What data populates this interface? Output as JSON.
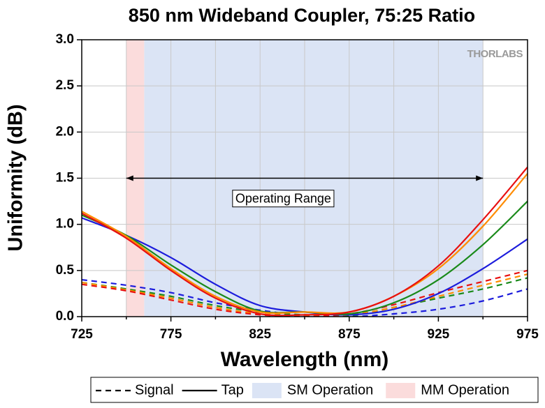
{
  "chart_data": {
    "type": "line",
    "title": "850 nm Wideband Coupler, 75:25 Ratio",
    "x_label": "Wavelength (nm)",
    "y_label": "Uniformity (dB)",
    "logo": "THORLABS",
    "x": [
      725,
      750,
      775,
      800,
      825,
      850,
      875,
      900,
      925,
      950,
      975
    ],
    "xlim": [
      725,
      975
    ],
    "xticks": [
      725,
      775,
      825,
      875,
      925,
      975
    ],
    "xminor_ticks": [
      750,
      800,
      850,
      900,
      950
    ],
    "ylim": [
      0,
      3
    ],
    "yticks": [
      {
        "value": 0,
        "label": "0.0"
      },
      0.5,
      {
        "value": 1,
        "label": "1.0"
      },
      1.5,
      {
        "value": 2,
        "label": "2.0"
      },
      2.5,
      {
        "value": 3,
        "label": "3.0"
      }
    ],
    "grid": true,
    "regions": [
      {
        "name": "SM Operation",
        "range": [
          760,
          950
        ],
        "color": "#dbe4f5"
      },
      {
        "name": "MM Operation",
        "range": [
          750,
          760
        ],
        "color": "#fbdcdc"
      }
    ],
    "line_styles": [
      {
        "name": "Signal",
        "dashed": true
      },
      {
        "name": "Tap",
        "dashed": false
      }
    ],
    "series": [
      {
        "color": "#1c1cdc",
        "dashed": true,
        "values": [
          0.4,
          0.34,
          0.26,
          0.15,
          0.07,
          0.01,
          0.0,
          0.03,
          0.08,
          0.17,
          0.3
        ]
      },
      {
        "color": "#1a8a1a",
        "dashed": true,
        "values": [
          0.37,
          0.3,
          0.22,
          0.12,
          0.05,
          0.02,
          0.01,
          0.1,
          0.2,
          0.3,
          0.42
        ]
      },
      {
        "color": "#ff8c00",
        "dashed": true,
        "values": [
          0.37,
          0.29,
          0.2,
          0.1,
          0.03,
          0.01,
          0.02,
          0.1,
          0.22,
          0.34,
          0.46
        ]
      },
      {
        "color": "#e81010",
        "dashed": true,
        "values": [
          0.35,
          0.28,
          0.18,
          0.08,
          0.02,
          0.0,
          0.03,
          0.13,
          0.26,
          0.38,
          0.5
        ]
      },
      {
        "color": "#1c1cdc",
        "dashed": false,
        "values": [
          1.07,
          0.88,
          0.64,
          0.35,
          0.12,
          0.05,
          0.02,
          0.08,
          0.25,
          0.52,
          0.84
        ]
      },
      {
        "color": "#1a8a1a",
        "dashed": false,
        "values": [
          1.1,
          0.88,
          0.56,
          0.27,
          0.06,
          0.05,
          0.03,
          0.15,
          0.4,
          0.78,
          1.25
        ]
      },
      {
        "color": "#ff8c00",
        "dashed": false,
        "values": [
          1.14,
          0.87,
          0.52,
          0.22,
          0.05,
          0.05,
          0.05,
          0.22,
          0.52,
          0.98,
          1.55
        ]
      },
      {
        "color": "#e81010",
        "dashed": false,
        "values": [
          1.12,
          0.85,
          0.5,
          0.2,
          0.03,
          0.02,
          0.05,
          0.22,
          0.55,
          1.05,
          1.62
        ]
      }
    ],
    "arrow": {
      "x": [
        750,
        950
      ],
      "y": 1.5
    },
    "annotations": [
      {
        "text": "Operating Range",
        "x": 838,
        "y": 1.27
      }
    ]
  }
}
